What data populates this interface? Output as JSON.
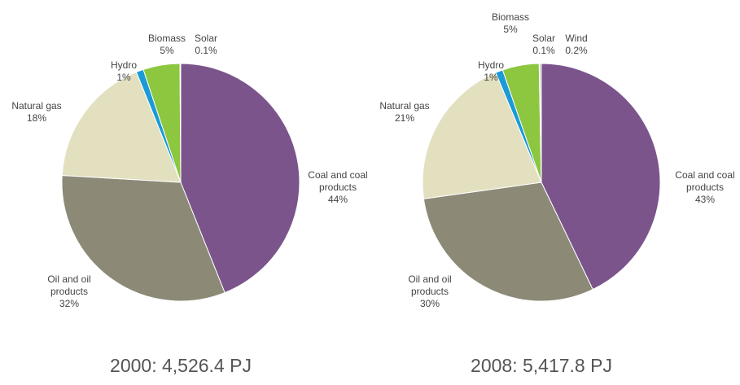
{
  "chart_data": [
    {
      "type": "pie",
      "title": "2000: 4,526.4 PJ",
      "categories": [
        "Coal and coal products",
        "Oil and oil products",
        "Natural gas",
        "Hydro",
        "Biomass",
        "Solar"
      ],
      "values": [
        44,
        32,
        18,
        1,
        5,
        0.1
      ],
      "value_labels": [
        "44%",
        "32%",
        "18%",
        "1%",
        "5%",
        "0.1%"
      ],
      "colors": [
        "#7b548c",
        "#8c8a76",
        "#e3e0c0",
        "#1b9ad6",
        "#8dc63f",
        "#e6e4a6"
      ]
    },
    {
      "type": "pie",
      "title": "2008: 5,417.8  PJ",
      "categories": [
        "Coal and coal products",
        "Oil and oil products",
        "Natural gas",
        "Hydro",
        "Biomass",
        "Solar",
        "Wind"
      ],
      "values": [
        43,
        30,
        21,
        1,
        5,
        0.1,
        0.2
      ],
      "value_labels": [
        "43%",
        "30%",
        "21%",
        "1%",
        "5%",
        "0.1%",
        "0.2%"
      ],
      "colors": [
        "#7b548c",
        "#8c8a76",
        "#e3e0c0",
        "#1b9ad6",
        "#8dc63f",
        "#e6e4a6",
        "#9a9a9a"
      ]
    }
  ]
}
